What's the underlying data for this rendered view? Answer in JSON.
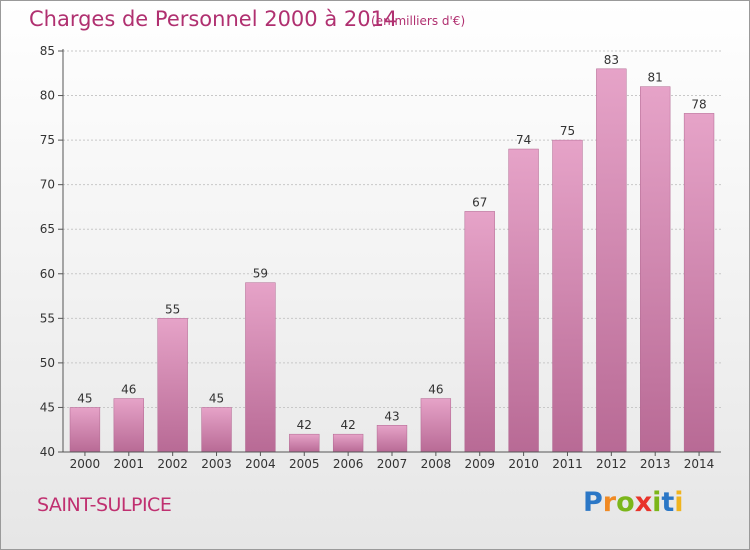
{
  "chart_data": {
    "type": "bar",
    "title": "Charges de Personnel 2000 à 2014",
    "subtitle": "(en milliers d'€)",
    "categories": [
      "2000",
      "2001",
      "2002",
      "2003",
      "2004",
      "2005",
      "2006",
      "2007",
      "2008",
      "2009",
      "2010",
      "2011",
      "2012",
      "2013",
      "2014"
    ],
    "values": [
      45,
      46,
      55,
      45,
      59,
      42,
      42,
      43,
      46,
      67,
      74,
      75,
      83,
      81,
      78
    ],
    "ylim": [
      40,
      85
    ],
    "yticks": [
      40,
      45,
      50,
      55,
      60,
      65,
      70,
      75,
      80,
      85
    ],
    "grid": "horizontal",
    "bar_color": "#d98ab3",
    "legend": "none"
  },
  "footer": {
    "place": "SAINT-SULPICE",
    "logo_letters": [
      {
        "ch": "P",
        "color": "#2b77c6"
      },
      {
        "ch": "r",
        "color": "#f08a24"
      },
      {
        "ch": "o",
        "color": "#7bb61a"
      },
      {
        "ch": "x",
        "color": "#e8332a"
      },
      {
        "ch": "i",
        "color": "#7bb61a"
      },
      {
        "ch": "t",
        "color": "#2b77c6"
      },
      {
        "ch": "i",
        "color": "#f0b41e"
      }
    ]
  }
}
